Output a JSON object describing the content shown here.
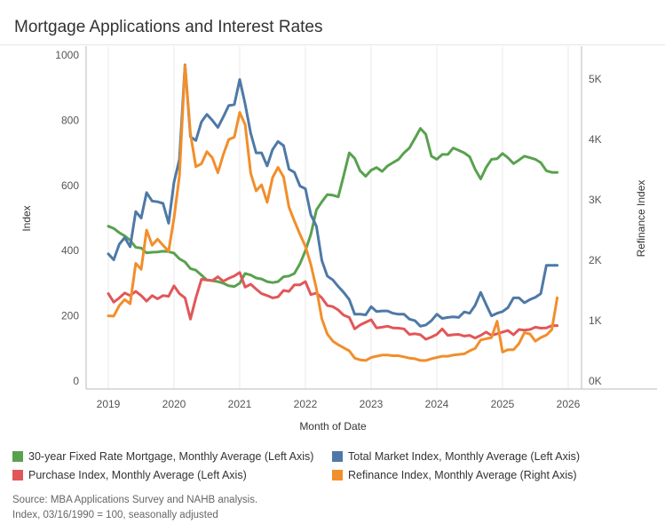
{
  "title": "Mortgage Applications and Interest Rates",
  "source_line1": "Source: MBA Applications Survey and NAHB analysis.",
  "source_line2": "Index, 03/16/1990 = 100, seasonally adjusted",
  "colors": {
    "green": "#59a14f",
    "blue": "#4e79a7",
    "red": "#e15759",
    "orange": "#f28e2b",
    "grid": "#e8e8e8",
    "axis": "#999999"
  },
  "chart_data": {
    "type": "line",
    "xlabel": "Month of Date",
    "ylabel": "Index",
    "y2label": "Refinance Index",
    "ylim": [
      0,
      1000
    ],
    "y2lim": [
      0,
      5400
    ],
    "xlim": [
      2019,
      2026
    ],
    "xticks": [
      "2019",
      "2020",
      "2021",
      "2022",
      "2023",
      "2024",
      "2025",
      "2026"
    ],
    "yticks": [
      "0",
      "200",
      "400",
      "600",
      "800",
      "1000"
    ],
    "y2ticks": [
      "0K",
      "1K",
      "2K",
      "3K",
      "4K",
      "5K"
    ],
    "legend": [
      "30-year Fixed Rate Mortgage, Monthly Average (Left Axis)",
      "Total Market Index, Monthly Average (Left Axis)",
      "Purchase Index, Monthly Average (Left Axis)",
      "Refinance Index, Monthly Average (Right Axis)"
    ],
    "series": [
      {
        "name": "30-year Fixed Rate Mortgage, Monthly Average (Left Axis)",
        "axis": "left",
        "color": "#59a14f",
        "x": [
          2019.0,
          2019.083,
          2019.167,
          2019.25,
          2019.333,
          2019.417,
          2019.5,
          2019.583,
          2019.667,
          2019.75,
          2019.833,
          2019.917,
          2020.0,
          2020.083,
          2020.167,
          2020.25,
          2020.333,
          2020.417,
          2020.5,
          2020.583,
          2020.667,
          2020.75,
          2020.833,
          2020.917,
          2021.0,
          2021.083,
          2021.167,
          2021.25,
          2021.333,
          2021.417,
          2021.5,
          2021.583,
          2021.667,
          2021.75,
          2021.833,
          2021.917,
          2022.0,
          2022.083,
          2022.167,
          2022.25,
          2022.333,
          2022.417,
          2022.5,
          2022.583,
          2022.667,
          2022.75,
          2022.833,
          2022.917,
          2023.0,
          2023.083,
          2023.167,
          2023.25,
          2023.333,
          2023.417,
          2023.5,
          2023.583,
          2023.667,
          2023.75,
          2023.833,
          2023.917,
          2024.0,
          2024.083,
          2024.167,
          2024.25,
          2024.333,
          2024.417,
          2024.5,
          2024.583,
          2024.667,
          2024.75,
          2024.833,
          2024.917,
          2025.0,
          2025.083,
          2025.167,
          2025.25,
          2025.333,
          2025.417,
          2025.5,
          2025.583,
          2025.667,
          2025.75,
          2025.833
        ],
        "values": [
          475,
          468,
          455,
          445,
          432,
          410,
          408,
          393,
          395,
          396,
          398,
          397,
          392,
          375,
          365,
          345,
          340,
          325,
          310,
          308,
          305,
          300,
          292,
          290,
          300,
          330,
          325,
          316,
          313,
          305,
          302,
          305,
          320,
          322,
          330,
          360,
          400,
          450,
          525,
          550,
          572,
          570,
          565,
          630,
          700,
          683,
          645,
          628,
          647,
          655,
          643,
          660,
          670,
          680,
          700,
          715,
          745,
          775,
          757,
          690,
          680,
          695,
          695,
          715,
          708,
          700,
          688,
          650,
          620,
          655,
          680,
          682,
          698,
          685,
          667,
          678,
          690,
          685,
          680,
          670,
          645,
          640,
          640
        ]
      },
      {
        "name": "Total Market Index, Monthly Average (Left Axis)",
        "axis": "left",
        "color": "#4e79a7",
        "x": [
          2019.0,
          2019.083,
          2019.167,
          2019.25,
          2019.333,
          2019.417,
          2019.5,
          2019.583,
          2019.667,
          2019.75,
          2019.833,
          2019.917,
          2020.0,
          2020.083,
          2020.167,
          2020.25,
          2020.333,
          2020.417,
          2020.5,
          2020.583,
          2020.667,
          2020.75,
          2020.833,
          2020.917,
          2021.0,
          2021.083,
          2021.167,
          2021.25,
          2021.333,
          2021.417,
          2021.5,
          2021.583,
          2021.667,
          2021.75,
          2021.833,
          2021.917,
          2022.0,
          2022.083,
          2022.167,
          2022.25,
          2022.333,
          2022.417,
          2022.5,
          2022.583,
          2022.667,
          2022.75,
          2022.833,
          2022.917,
          2023.0,
          2023.083,
          2023.167,
          2023.25,
          2023.333,
          2023.417,
          2023.5,
          2023.583,
          2023.667,
          2023.75,
          2023.833,
          2023.917,
          2024.0,
          2024.083,
          2024.167,
          2024.25,
          2024.333,
          2024.417,
          2024.5,
          2024.583,
          2024.667,
          2024.75,
          2024.833,
          2024.917,
          2025.0,
          2025.083,
          2025.167,
          2025.25,
          2025.333,
          2025.417,
          2025.5,
          2025.583,
          2025.667,
          2025.75,
          2025.833
        ],
        "values": [
          390,
          372,
          420,
          440,
          412,
          520,
          500,
          578,
          552,
          550,
          545,
          484,
          610,
          680,
          970,
          750,
          738,
          795,
          818,
          800,
          778,
          810,
          845,
          848,
          925,
          850,
          760,
          700,
          700,
          660,
          710,
          735,
          722,
          650,
          640,
          598,
          590,
          510,
          475,
          370,
          322,
          310,
          290,
          272,
          250,
          205,
          205,
          203,
          228,
          213,
          215,
          215,
          208,
          205,
          205,
          190,
          185,
          168,
          172,
          185,
          205,
          192,
          195,
          197,
          195,
          212,
          208,
          232,
          272,
          235,
          200,
          208,
          213,
          225,
          255,
          255,
          240,
          250,
          257,
          268,
          355,
          355,
          355
        ]
      },
      {
        "name": "Purchase Index, Monthly Average (Left Axis)",
        "axis": "left",
        "color": "#e15759",
        "x": [
          2019.0,
          2019.083,
          2019.167,
          2019.25,
          2019.333,
          2019.417,
          2019.5,
          2019.583,
          2019.667,
          2019.75,
          2019.833,
          2019.917,
          2020.0,
          2020.083,
          2020.167,
          2020.25,
          2020.333,
          2020.417,
          2020.5,
          2020.583,
          2020.667,
          2020.75,
          2020.833,
          2020.917,
          2021.0,
          2021.083,
          2021.167,
          2021.25,
          2021.333,
          2021.417,
          2021.5,
          2021.583,
          2021.667,
          2021.75,
          2021.833,
          2021.917,
          2022.0,
          2022.083,
          2022.167,
          2022.25,
          2022.333,
          2022.417,
          2022.5,
          2022.583,
          2022.667,
          2022.75,
          2022.833,
          2022.917,
          2023.0,
          2023.083,
          2023.167,
          2023.25,
          2023.333,
          2023.417,
          2023.5,
          2023.583,
          2023.667,
          2023.75,
          2023.833,
          2023.917,
          2024.0,
          2024.083,
          2024.167,
          2024.25,
          2024.333,
          2024.417,
          2024.5,
          2024.583,
          2024.667,
          2024.75,
          2024.833,
          2024.917,
          2025.0,
          2025.083,
          2025.167,
          2025.25,
          2025.333,
          2025.417,
          2025.5,
          2025.583,
          2025.667,
          2025.75,
          2025.833
        ],
        "values": [
          268,
          242,
          255,
          270,
          262,
          275,
          262,
          245,
          262,
          252,
          262,
          260,
          292,
          268,
          255,
          190,
          255,
          312,
          310,
          308,
          320,
          306,
          315,
          322,
          333,
          288,
          297,
          282,
          268,
          262,
          255,
          258,
          278,
          275,
          295,
          295,
          305,
          265,
          270,
          255,
          232,
          228,
          218,
          202,
          195,
          160,
          172,
          180,
          188,
          163,
          165,
          168,
          163,
          162,
          160,
          143,
          145,
          142,
          128,
          135,
          143,
          160,
          140,
          142,
          143,
          138,
          140,
          132,
          140,
          150,
          140,
          145,
          150,
          155,
          142,
          158,
          156,
          158,
          165,
          162,
          163,
          170,
          170
        ]
      },
      {
        "name": "Refinance Index, Monthly Average (Right Axis)",
        "axis": "right",
        "color": "#f28e2b",
        "x": [
          2019.0,
          2019.083,
          2019.167,
          2019.25,
          2019.333,
          2019.417,
          2019.5,
          2019.583,
          2019.667,
          2019.75,
          2019.833,
          2019.917,
          2020.0,
          2020.083,
          2020.167,
          2020.25,
          2020.333,
          2020.417,
          2020.5,
          2020.583,
          2020.667,
          2020.75,
          2020.833,
          2020.917,
          2021.0,
          2021.083,
          2021.167,
          2021.25,
          2021.333,
          2021.417,
          2021.5,
          2021.583,
          2021.667,
          2021.75,
          2021.833,
          2021.917,
          2022.0,
          2022.083,
          2022.167,
          2022.25,
          2022.333,
          2022.417,
          2022.5,
          2022.583,
          2022.667,
          2022.75,
          2022.833,
          2022.917,
          2023.0,
          2023.083,
          2023.167,
          2023.25,
          2023.333,
          2023.417,
          2023.5,
          2023.583,
          2023.667,
          2023.75,
          2023.833,
          2023.917,
          2024.0,
          2024.083,
          2024.167,
          2024.25,
          2024.333,
          2024.417,
          2024.5,
          2024.583,
          2024.667,
          2024.75,
          2024.833,
          2024.917,
          2025.0,
          2025.083,
          2025.167,
          2025.25,
          2025.333,
          2025.417,
          2025.5,
          2025.583,
          2025.667,
          2025.75,
          2025.833
        ],
        "values": [
          1080,
          1075,
          1250,
          1350,
          1280,
          1950,
          1850,
          2500,
          2250,
          2350,
          2250,
          2150,
          2700,
          3400,
          5230,
          4100,
          3550,
          3600,
          3800,
          3700,
          3450,
          3750,
          4000,
          4040,
          4450,
          4250,
          3440,
          3150,
          3250,
          2960,
          3370,
          3540,
          3380,
          2880,
          2650,
          2430,
          2230,
          1930,
          1530,
          1030,
          780,
          660,
          600,
          550,
          500,
          380,
          350,
          340,
          390,
          410,
          430,
          430,
          420,
          420,
          400,
          380,
          370,
          340,
          340,
          370,
          390,
          410,
          410,
          430,
          440,
          450,
          500,
          540,
          680,
          700,
          720,
          990,
          480,
          520,
          520,
          620,
          800,
          780,
          660,
          720,
          760,
          850,
          1380
        ]
      }
    ]
  }
}
